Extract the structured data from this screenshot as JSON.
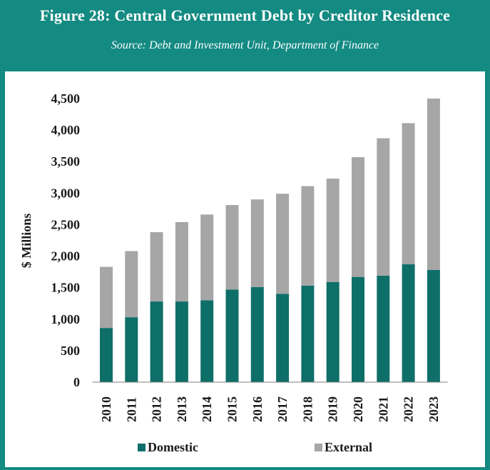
{
  "header": {
    "title": "Figure 28: Central Government Debt by Creditor Residence",
    "subtitle": "Source: Debt and Investment Unit, Department of Finance"
  },
  "colors": {
    "frame": "#138a82",
    "domestic": "#0e6f69",
    "external": "#a6a6a6"
  },
  "chart_data": {
    "type": "bar",
    "stacked": true,
    "categories": [
      "2010",
      "2011",
      "2012",
      "2013",
      "2014",
      "2015",
      "2016",
      "2017",
      "2018",
      "2019",
      "2020",
      "2021",
      "2022",
      "2023"
    ],
    "series": [
      {
        "name": "Domestic",
        "values": [
          860,
          1030,
          1280,
          1280,
          1300,
          1470,
          1510,
          1400,
          1530,
          1590,
          1670,
          1690,
          1870,
          1780
        ]
      },
      {
        "name": "External",
        "values": [
          970,
          1050,
          1100,
          1260,
          1360,
          1340,
          1390,
          1590,
          1580,
          1640,
          1900,
          2180,
          2240,
          2720
        ]
      }
    ],
    "ylabel": "$ Millions",
    "xlabel": "",
    "ylim": [
      0,
      4500
    ],
    "yticks": [
      "0",
      "500",
      "1,000",
      "1,500",
      "2,000",
      "2,500",
      "3,000",
      "3,500",
      "4,000",
      "4,500"
    ],
    "ytick_values": [
      0,
      500,
      1000,
      1500,
      2000,
      2500,
      3000,
      3500,
      4000,
      4500
    ],
    "grid": false,
    "legend": "bottom"
  }
}
